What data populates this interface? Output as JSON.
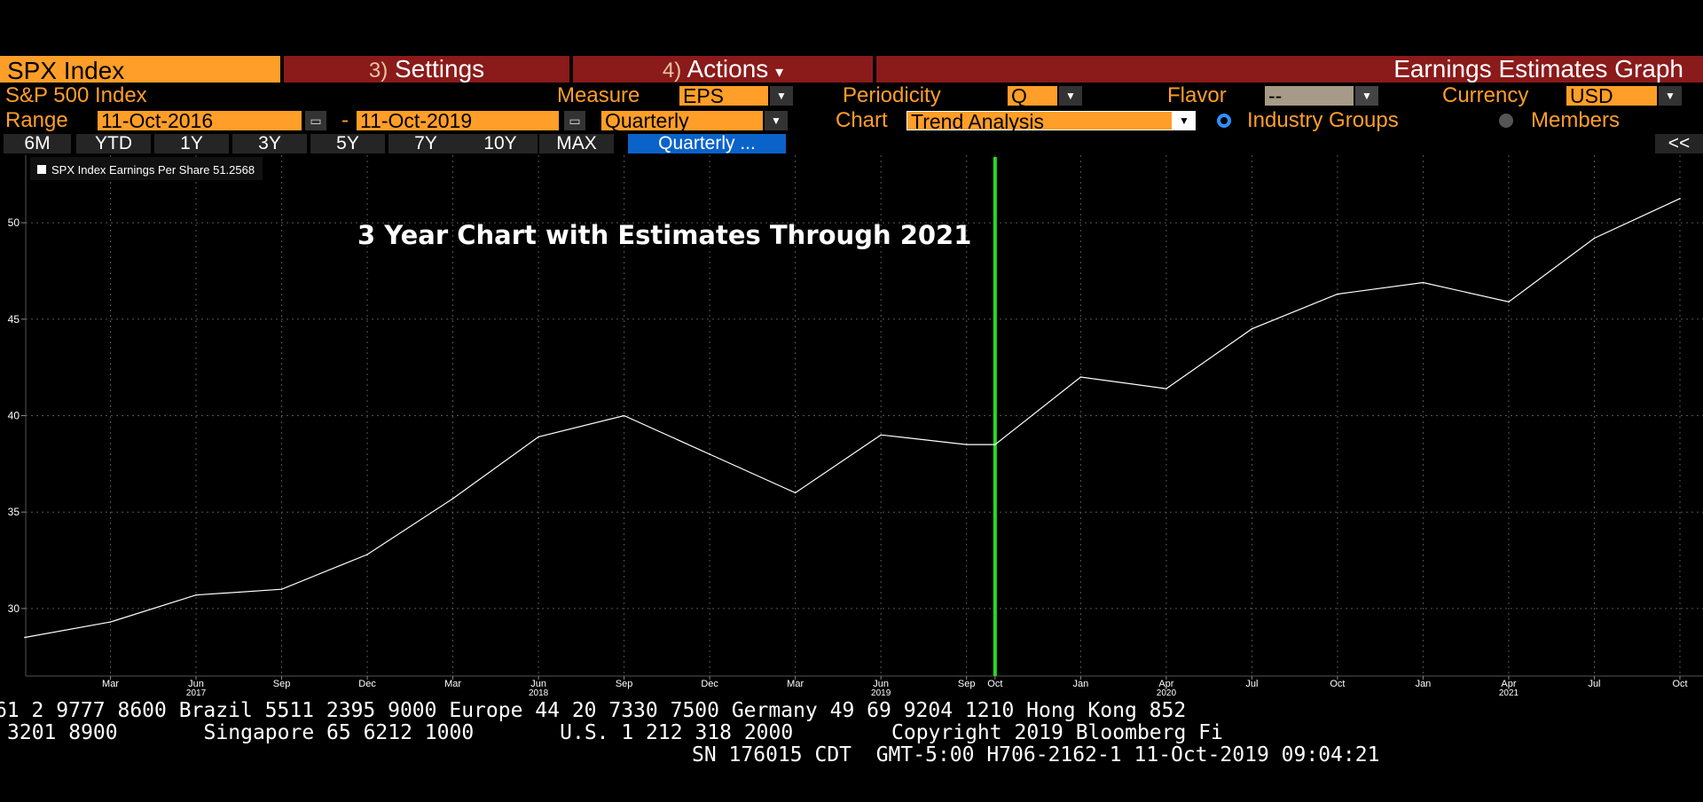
{
  "header": {
    "ticker": "SPX Index",
    "settings_num": "3)",
    "settings_label": "Settings",
    "actions_num": "4)",
    "actions_label": "Actions",
    "actions_arrow": "▾",
    "screen_title": "Earnings Estimates Graph"
  },
  "row1": {
    "security_name": "S&P 500 Index",
    "measure_label": "Measure",
    "measure_value": "EPS",
    "periodicity_label": "Periodicity",
    "periodicity_value": "Q",
    "flavor_label": "Flavor",
    "flavor_value": "--",
    "currency_label": "Currency",
    "currency_value": "USD"
  },
  "row2": {
    "range_label": "Range",
    "start_date": "11-Oct-2016",
    "dash": "-",
    "end_date": "11-Oct-2019",
    "frequency_value": "Quarterly",
    "chart_label": "Chart",
    "chart_value": "Trend Analysis",
    "radio_industry": "Industry Groups",
    "radio_members": "Members"
  },
  "periods": [
    "6M",
    "YTD",
    "1Y",
    "3Y",
    "5Y",
    "7Y",
    "10Y",
    "MAX"
  ],
  "quarterly_button": "Quarterly ...",
  "collapse_button": "<<",
  "icons": {
    "calendar": "calendar-icon",
    "dropdown": "chevron-down-icon",
    "radio": "radio-icon"
  },
  "colors": {
    "accent": "#ff9e28",
    "title_bar": "#8b1a1a",
    "marker_line": "#22dd22",
    "series": "#ffffff"
  },
  "chart_data": {
    "type": "line",
    "title": "3 Year Chart with Estimates Through 2021",
    "legend": "SPX Index Earnings Per Share 51.2568",
    "legend_placement": "top-left",
    "grid": true,
    "x": [
      "2016-12",
      "2017-03",
      "2017-06",
      "2017-09",
      "2017-12",
      "2018-03",
      "2018-06",
      "2018-09",
      "2018-12",
      "2019-03",
      "2019-06",
      "2019-09",
      "2019-10",
      "2020-01",
      "2020-04",
      "2020-07",
      "2020-10",
      "2021-01",
      "2021-04",
      "2021-07",
      "2021-10"
    ],
    "series": [
      {
        "name": "SPX Index Earnings Per Share",
        "values": [
          28.5,
          29.3,
          30.7,
          31.0,
          32.8,
          35.7,
          38.9,
          40.0,
          38.0,
          36.0,
          39.0,
          38.5,
          38.5,
          42.0,
          41.4,
          44.5,
          46.3,
          46.9,
          45.9,
          49.2,
          51.2568
        ]
      }
    ],
    "ylim": [
      26.5,
      53.5
    ],
    "yticks": [
      "30",
      "35",
      "40",
      "45",
      "50"
    ],
    "xticks": [
      {
        "m": "Mar",
        "y": ""
      },
      {
        "m": "Jun",
        "y": "2017"
      },
      {
        "m": "Sep",
        "y": ""
      },
      {
        "m": "Dec",
        "y": ""
      },
      {
        "m": "Mar",
        "y": ""
      },
      {
        "m": "Jun",
        "y": "2018"
      },
      {
        "m": "Sep",
        "y": ""
      },
      {
        "m": "Dec",
        "y": ""
      },
      {
        "m": "Mar",
        "y": ""
      },
      {
        "m": "Jun",
        "y": "2019"
      },
      {
        "m": "Sep",
        "y": ""
      },
      {
        "m": "Oct",
        "y": ""
      },
      {
        "m": "Jan",
        "y": ""
      },
      {
        "m": "Apr",
        "y": "2020"
      },
      {
        "m": "Jul",
        "y": ""
      },
      {
        "m": "Oct",
        "y": ""
      },
      {
        "m": "Jan",
        "y": ""
      },
      {
        "m": "Apr",
        "y": "2021"
      },
      {
        "m": "Jul",
        "y": ""
      },
      {
        "m": "Oct",
        "y": ""
      }
    ],
    "marker_at": "2019-10"
  },
  "footer": {
    "line1": "61 2 9777 8600 Brazil 5511 2395 9000 Europe 44 20 7330 7500 Germany 49 69 9204 1210 Hong Kong 852",
    "line2": "3201 8900       Singapore 65 6212 1000       U.S. 1 212 318 2000        Copyright 2019 Bloomberg Fi",
    "line3": "SN 176015 CDT  GMT-5:00 H706-2162-1 11-Oct-2019 09:04:21"
  }
}
